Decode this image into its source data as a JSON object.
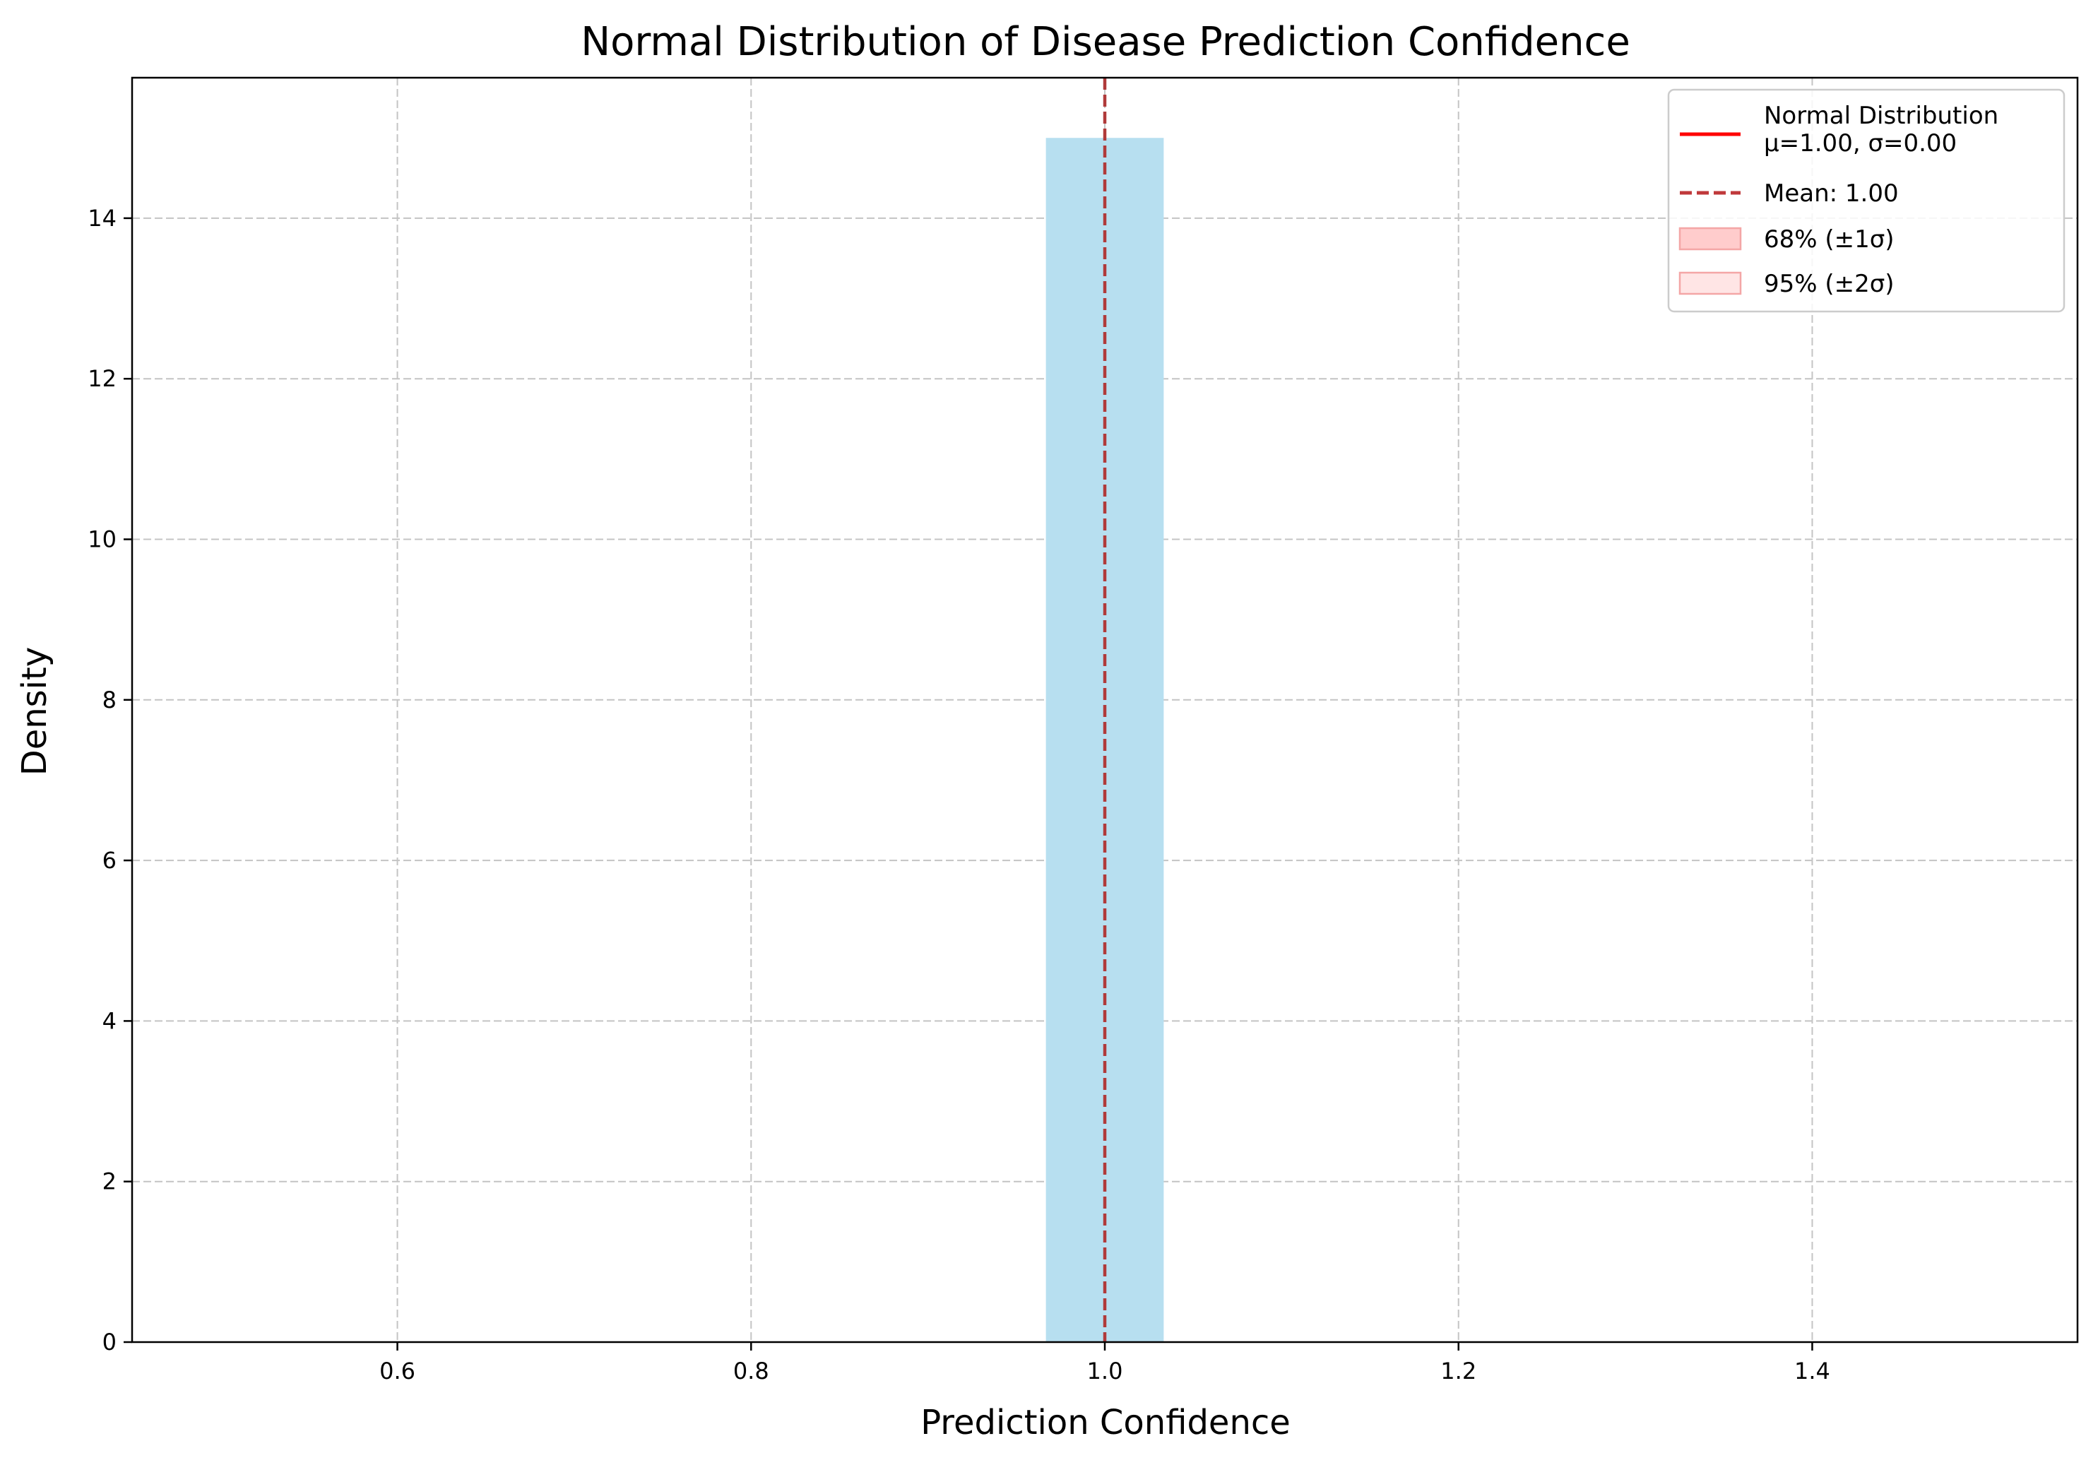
{
  "chart_data": {
    "type": "bar",
    "title": "Normal Distribution of Disease Prediction Confidence",
    "xlabel": "Prediction Confidence",
    "ylabel": "Density",
    "xlim": [
      0.45,
      1.55
    ],
    "ylim": [
      0,
      15.75
    ],
    "x_ticks": [
      0.6,
      0.8,
      1.0,
      1.2,
      1.4
    ],
    "x_tick_labels": [
      "0.6",
      "0.8",
      "1.0",
      "1.2",
      "1.4"
    ],
    "y_ticks": [
      0,
      2,
      4,
      6,
      8,
      10,
      12,
      14
    ],
    "y_tick_labels": [
      "0",
      "2",
      "4",
      "6",
      "8",
      "10",
      "12",
      "14"
    ],
    "grid": true,
    "bars": [
      {
        "x_start": 0.9667,
        "x_end": 1.0333,
        "value": 15
      }
    ],
    "mean_line": {
      "x": 1.0
    },
    "legend": {
      "placement": "top-right",
      "entries": [
        {
          "kind": "line",
          "label_lines": [
            "Normal Distribution",
            "μ=1.00, σ=0.00"
          ],
          "color": "#ff0000"
        },
        {
          "kind": "dashed-line",
          "label_lines": [
            "Mean: 1.00"
          ],
          "color": "#c0393b"
        },
        {
          "kind": "patch",
          "label_lines": [
            "68% (±1σ)"
          ],
          "color": "#ffcccc"
        },
        {
          "kind": "patch",
          "label_lines": [
            "95% (±2σ)"
          ],
          "color": "#ffe5e5"
        }
      ]
    },
    "colors": {
      "bar": "#b7dff0",
      "mean_line": "#b03a3a",
      "grid": "#c4c4c4"
    }
  }
}
